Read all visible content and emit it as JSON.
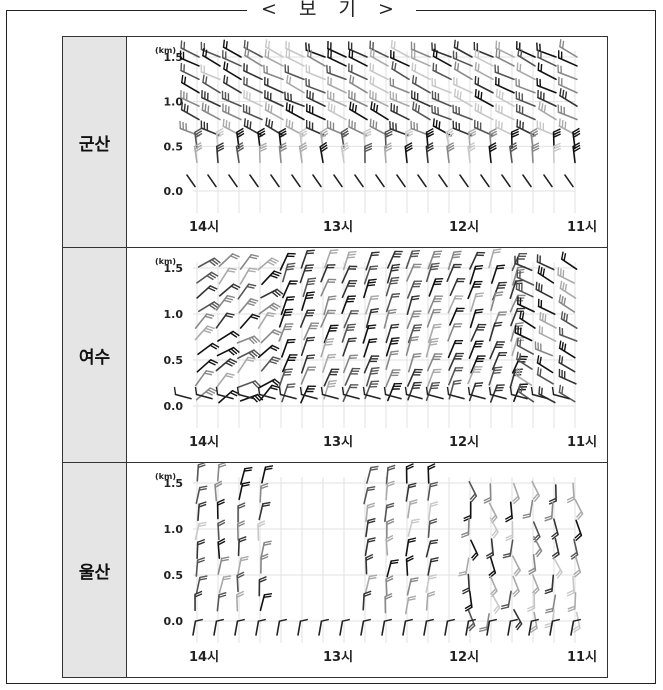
{
  "legend_title": "< 보 기 >",
  "y_unit": "(km)",
  "y_ticks": [
    "1.5",
    "1.0",
    "0.5",
    "0.0"
  ],
  "x_ticks": [
    "14시",
    "13시",
    "12시",
    "11시"
  ],
  "stations": [
    {
      "name": "군산",
      "pattern": "uniform"
    },
    {
      "name": "여수",
      "pattern": "dense-upper"
    },
    {
      "name": "울산",
      "pattern": "mixed"
    }
  ]
}
